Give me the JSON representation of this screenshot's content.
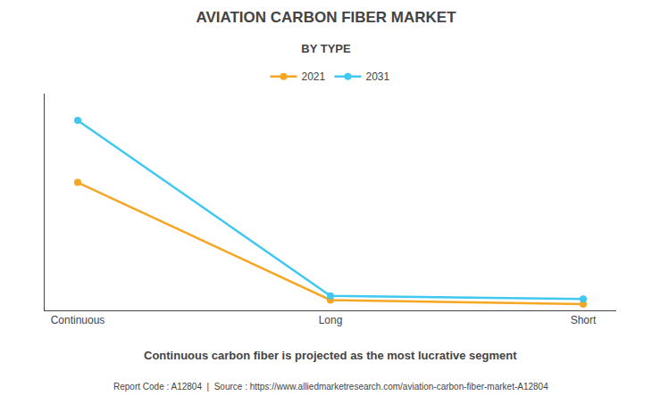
{
  "chart_data": {
    "type": "line",
    "title": "AVIATION CARBON FIBER MARKET",
    "subtitle": "BY TYPE",
    "categories": [
      "Continuous",
      "Long",
      "Short"
    ],
    "series": [
      {
        "name": "2021",
        "color": "#F5A623",
        "values": [
          0.62,
          0.05,
          0.03
        ]
      },
      {
        "name": "2031",
        "color": "#40C8F0",
        "values": [
          0.92,
          0.07,
          0.055
        ]
      }
    ],
    "ylim": [
      0,
      1.05
    ],
    "yticks": [],
    "tick_labels": "x",
    "grid": false,
    "legend": "top",
    "marker": "circle",
    "line_style": "solid",
    "annotations": [
      "Continuous carbon fiber is projected as the most lucrative segment",
      "Report Code : A12804  |  Source : https://www.alliedmarketresearch.com/aviation-carbon-fiber-market-A12804"
    ]
  }
}
